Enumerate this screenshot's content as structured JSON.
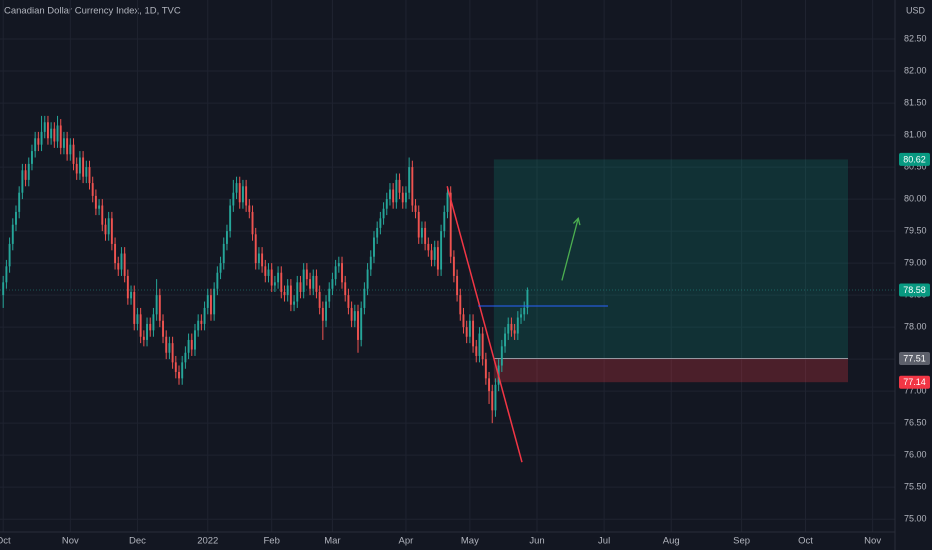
{
  "chart_data": {
    "type": "candlestick",
    "title": "Canadian Dollar Currency Index, 1D, TVC",
    "currency": "USD",
    "up_color": "#26a69a",
    "down_color": "#ef5350",
    "grid": true,
    "open": [
      78.5,
      78.7,
      78.95,
      79.3,
      79.6,
      79.8,
      80.1,
      80.45,
      80.3,
      80.55,
      80.75,
      80.95,
      80.85,
      81.05,
      81.2,
      80.95,
      81.1,
      80.9,
      81.15,
      80.8,
      80.95,
      80.7,
      80.85,
      80.55,
      80.4,
      80.65,
      80.35,
      80.5,
      80.25,
      80.05,
      79.85,
      79.9,
      79.6,
      79.45,
      79.7,
      79.3,
      79.0,
      78.9,
      79.15,
      78.8,
      78.45,
      78.55,
      78.05,
      78.2,
      77.85,
      77.8,
      78.05,
      77.95,
      78.2,
      78.5,
      78.1,
      77.85,
      77.6,
      77.75,
      77.45,
      77.3,
      77.2,
      77.45,
      77.6,
      77.8,
      77.65,
      77.95,
      78.1,
      78.05,
      78.3,
      78.5,
      78.2,
      78.6,
      78.85,
      79.0,
      79.3,
      79.5,
      79.9,
      80.1,
      80.25,
      79.95,
      80.2,
      79.9,
      79.8,
      79.45,
      79.0,
      79.15,
      78.95,
      78.8,
      78.9,
      78.65,
      78.7,
      78.85,
      78.55,
      78.5,
      78.65,
      78.35,
      78.4,
      78.7,
      78.55,
      78.9,
      78.75,
      78.6,
      78.8,
      78.55,
      78.3,
      78.1,
      78.4,
      78.6,
      78.75,
      78.95,
      79.0,
      78.7,
      78.5,
      78.3,
      78.1,
      78.25,
      77.8,
      78.3,
      78.6,
      78.9,
      79.1,
      79.4,
      79.55,
      79.7,
      79.85,
      80.0,
      80.15,
      79.95,
      80.3,
      80.1,
      79.95,
      80.1,
      80.5,
      79.9,
      79.8,
      79.4,
      79.55,
      79.3,
      79.2,
      79.05,
      79.25,
      78.9,
      79.5,
      79.8,
      80.1,
      79.1,
      78.8,
      78.5,
      78.2,
      78.0,
      77.85,
      78.1,
      77.7,
      77.55,
      77.9,
      77.5,
      77.2,
      77.0,
      76.7,
      77.1,
      77.4,
      77.7,
      77.9,
      78.05,
      77.95,
      77.9,
      78.15,
      78.2,
      78.3
    ],
    "high": [
      78.8,
      79.05,
      79.4,
      79.7,
      79.9,
      80.2,
      80.55,
      80.55,
      80.65,
      80.85,
      81.05,
      81.05,
      81.3,
      81.3,
      81.3,
      81.2,
      81.2,
      81.3,
      81.25,
      81.05,
      81.05,
      80.95,
      80.95,
      80.65,
      80.75,
      80.75,
      80.6,
      80.6,
      80.35,
      80.15,
      80.0,
      80.0,
      79.7,
      79.8,
      79.8,
      79.4,
      79.1,
      79.25,
      79.25,
      78.9,
      78.65,
      78.65,
      78.3,
      78.3,
      77.95,
      78.15,
      78.15,
      78.3,
      78.75,
      78.6,
      78.2,
      77.95,
      77.85,
      77.85,
      77.55,
      77.4,
      77.55,
      77.7,
      77.9,
      77.9,
      78.05,
      78.2,
      78.2,
      78.4,
      78.6,
      78.6,
      78.7,
      78.95,
      79.1,
      79.4,
      79.6,
      80.0,
      80.3,
      80.35,
      80.35,
      80.3,
      80.3,
      80.0,
      79.9,
      79.55,
      79.25,
      79.25,
      79.05,
      79.0,
      79.0,
      78.8,
      78.95,
      78.95,
      78.65,
      78.75,
      78.75,
      78.5,
      78.8,
      78.8,
      79.0,
      79.0,
      78.85,
      78.9,
      78.9,
      78.65,
      78.4,
      78.5,
      78.7,
      78.85,
      79.05,
      79.1,
      79.1,
      78.8,
      78.6,
      78.4,
      78.35,
      78.35,
      78.4,
      78.7,
      79.0,
      79.2,
      79.5,
      79.65,
      79.8,
      79.95,
      80.1,
      80.25,
      80.25,
      80.4,
      80.4,
      80.2,
      80.2,
      80.65,
      80.6,
      80.0,
      79.9,
      79.65,
      79.65,
      79.4,
      79.3,
      79.35,
      79.35,
      79.6,
      79.9,
      80.2,
      80.2,
      79.2,
      78.9,
      78.6,
      78.3,
      78.1,
      78.2,
      78.2,
      77.8,
      78.0,
      78.0,
      77.6,
      77.3,
      77.1,
      77.2,
      77.5,
      77.8,
      78.0,
      78.15,
      78.15,
      78.05,
      78.25,
      78.3,
      78.4,
      78.62
    ],
    "low": [
      78.3,
      78.6,
      78.85,
      79.2,
      79.5,
      79.7,
      80.0,
      80.2,
      80.2,
      80.45,
      80.65,
      80.75,
      80.75,
      80.95,
      80.85,
      80.85,
      80.8,
      80.8,
      80.7,
      80.7,
      80.6,
      80.6,
      80.45,
      80.3,
      80.3,
      80.25,
      80.25,
      80.15,
      79.95,
      79.75,
      79.75,
      79.5,
      79.35,
      79.35,
      79.2,
      78.9,
      78.8,
      78.8,
      78.7,
      78.35,
      78.35,
      77.95,
      77.95,
      77.75,
      77.7,
      77.7,
      77.85,
      77.85,
      78.1,
      78.0,
      77.75,
      77.5,
      77.5,
      77.35,
      77.2,
      77.1,
      77.1,
      77.35,
      77.5,
      77.55,
      77.55,
      77.85,
      77.95,
      77.95,
      78.2,
      78.1,
      78.1,
      78.5,
      78.75,
      78.9,
      79.2,
      79.4,
      79.8,
      80.0,
      79.85,
      79.85,
      79.8,
      79.7,
      79.35,
      78.9,
      78.9,
      78.85,
      78.7,
      78.7,
      78.55,
      78.55,
      78.6,
      78.45,
      78.4,
      78.4,
      78.25,
      78.25,
      78.3,
      78.45,
      78.45,
      78.65,
      78.5,
      78.5,
      78.45,
      78.2,
      77.8,
      78.0,
      78.3,
      78.5,
      78.65,
      78.85,
      78.6,
      78.4,
      78.2,
      78.0,
      78.0,
      77.6,
      77.7,
      78.2,
      78.5,
      78.8,
      79.0,
      79.3,
      79.45,
      79.6,
      79.75,
      79.9,
      79.85,
      79.85,
      80.0,
      79.85,
      79.85,
      80.0,
      79.8,
      79.7,
      79.3,
      79.3,
      79.2,
      79.1,
      78.95,
      78.95,
      78.8,
      78.8,
      79.4,
      79.7,
      79.0,
      78.7,
      78.4,
      78.1,
      77.9,
      77.75,
      77.75,
      77.6,
      77.45,
      77.45,
      77.4,
      77.1,
      76.8,
      76.5,
      76.6,
      77.0,
      77.3,
      77.6,
      77.8,
      77.85,
      77.8,
      77.8,
      78.05,
      78.1,
      78.2
    ],
    "close": [
      78.7,
      78.95,
      79.3,
      79.6,
      79.8,
      80.1,
      80.45,
      80.3,
      80.55,
      80.75,
      80.95,
      80.85,
      81.05,
      81.2,
      80.95,
      81.1,
      80.9,
      81.15,
      80.8,
      80.95,
      80.7,
      80.85,
      80.55,
      80.4,
      80.65,
      80.35,
      80.5,
      80.25,
      80.05,
      79.85,
      79.9,
      79.6,
      79.45,
      79.7,
      79.3,
      79.0,
      78.9,
      79.15,
      78.8,
      78.45,
      78.55,
      78.05,
      78.2,
      77.85,
      77.8,
      78.05,
      77.95,
      78.2,
      78.5,
      78.1,
      77.85,
      77.6,
      77.75,
      77.45,
      77.3,
      77.2,
      77.45,
      77.6,
      77.8,
      77.65,
      77.95,
      78.1,
      78.05,
      78.3,
      78.5,
      78.2,
      78.6,
      78.85,
      79.0,
      79.3,
      79.5,
      79.9,
      80.1,
      80.25,
      79.95,
      80.2,
      79.9,
      79.8,
      79.45,
      79.0,
      79.15,
      78.95,
      78.8,
      78.9,
      78.65,
      78.7,
      78.85,
      78.55,
      78.5,
      78.65,
      78.35,
      78.4,
      78.7,
      78.55,
      78.9,
      78.75,
      78.6,
      78.8,
      78.55,
      78.3,
      78.1,
      78.4,
      78.6,
      78.75,
      78.95,
      79.0,
      78.7,
      78.5,
      78.3,
      78.1,
      78.25,
      77.8,
      78.3,
      78.6,
      78.9,
      79.1,
      79.4,
      79.55,
      79.7,
      79.85,
      80.0,
      80.15,
      79.95,
      80.3,
      80.1,
      79.95,
      80.1,
      80.5,
      79.9,
      79.8,
      79.4,
      79.55,
      79.3,
      79.2,
      79.05,
      79.25,
      78.9,
      79.5,
      79.8,
      80.1,
      79.1,
      78.8,
      78.5,
      78.2,
      78.0,
      77.85,
      78.1,
      77.7,
      77.55,
      77.9,
      77.5,
      77.2,
      77.0,
      76.7,
      77.1,
      77.4,
      77.7,
      77.9,
      78.05,
      77.95,
      77.9,
      78.15,
      78.2,
      78.3,
      78.58
    ],
    "xlim": [
      -1,
      279
    ],
    "ylim": [
      74.8,
      83.11
    ],
    "xticks": [
      {
        "value": 0,
        "label": "Oct"
      },
      {
        "value": 21,
        "label": "Nov"
      },
      {
        "value": 42,
        "label": "Dec"
      },
      {
        "value": 64,
        "label": "2022"
      },
      {
        "value": 84,
        "label": "Feb"
      },
      {
        "value": 103,
        "label": "Mar"
      },
      {
        "value": 126,
        "label": "Apr"
      },
      {
        "value": 146,
        "label": "May"
      },
      {
        "value": 167,
        "label": "Jun"
      },
      {
        "value": 188,
        "label": "Jul"
      },
      {
        "value": 209,
        "label": "Aug"
      },
      {
        "value": 231,
        "label": "Sep"
      },
      {
        "value": 251,
        "label": "Oct"
      },
      {
        "value": 272,
        "label": "Nov"
      }
    ],
    "yticks": [
      {
        "value": 75,
        "label": "75.00"
      },
      {
        "value": 75.5,
        "label": "75.50"
      },
      {
        "value": 76,
        "label": "76.00"
      },
      {
        "value": 76.5,
        "label": "76.50"
      },
      {
        "value": 77,
        "label": "77.00"
      },
      {
        "value": 77.5,
        "label": "77.50"
      },
      {
        "value": 78,
        "label": "78.00"
      },
      {
        "value": 78.5,
        "label": "78.50"
      },
      {
        "value": 79,
        "label": "79.00"
      },
      {
        "value": 79.5,
        "label": "79.50"
      },
      {
        "value": 80,
        "label": "80.00"
      },
      {
        "value": 80.5,
        "label": "80.50"
      },
      {
        "value": 81,
        "label": "81.00"
      },
      {
        "value": 81.5,
        "label": "81.50"
      },
      {
        "value": 82,
        "label": "82.00"
      },
      {
        "value": 82.5,
        "label": "82.50"
      }
    ],
    "last_price": 78.58,
    "position": {
      "x": [
        153.5,
        264.3
      ],
      "target": 80.62,
      "entry": 77.51,
      "stop": 77.14,
      "profit_color": "#089981",
      "loss_color": "#f23645"
    },
    "trendline": {
      "x": [
        138.9,
        162.3
      ],
      "y": [
        80.2,
        75.89
      ],
      "color": "#f23645"
    },
    "level_line": {
      "x": [
        148.6,
        189.2
      ],
      "y": 78.33,
      "color": "#2962ff"
    },
    "arrow": {
      "x": [
        174.8,
        179.9
      ],
      "y": [
        78.73,
        79.7
      ],
      "color": "#4caf50"
    }
  }
}
